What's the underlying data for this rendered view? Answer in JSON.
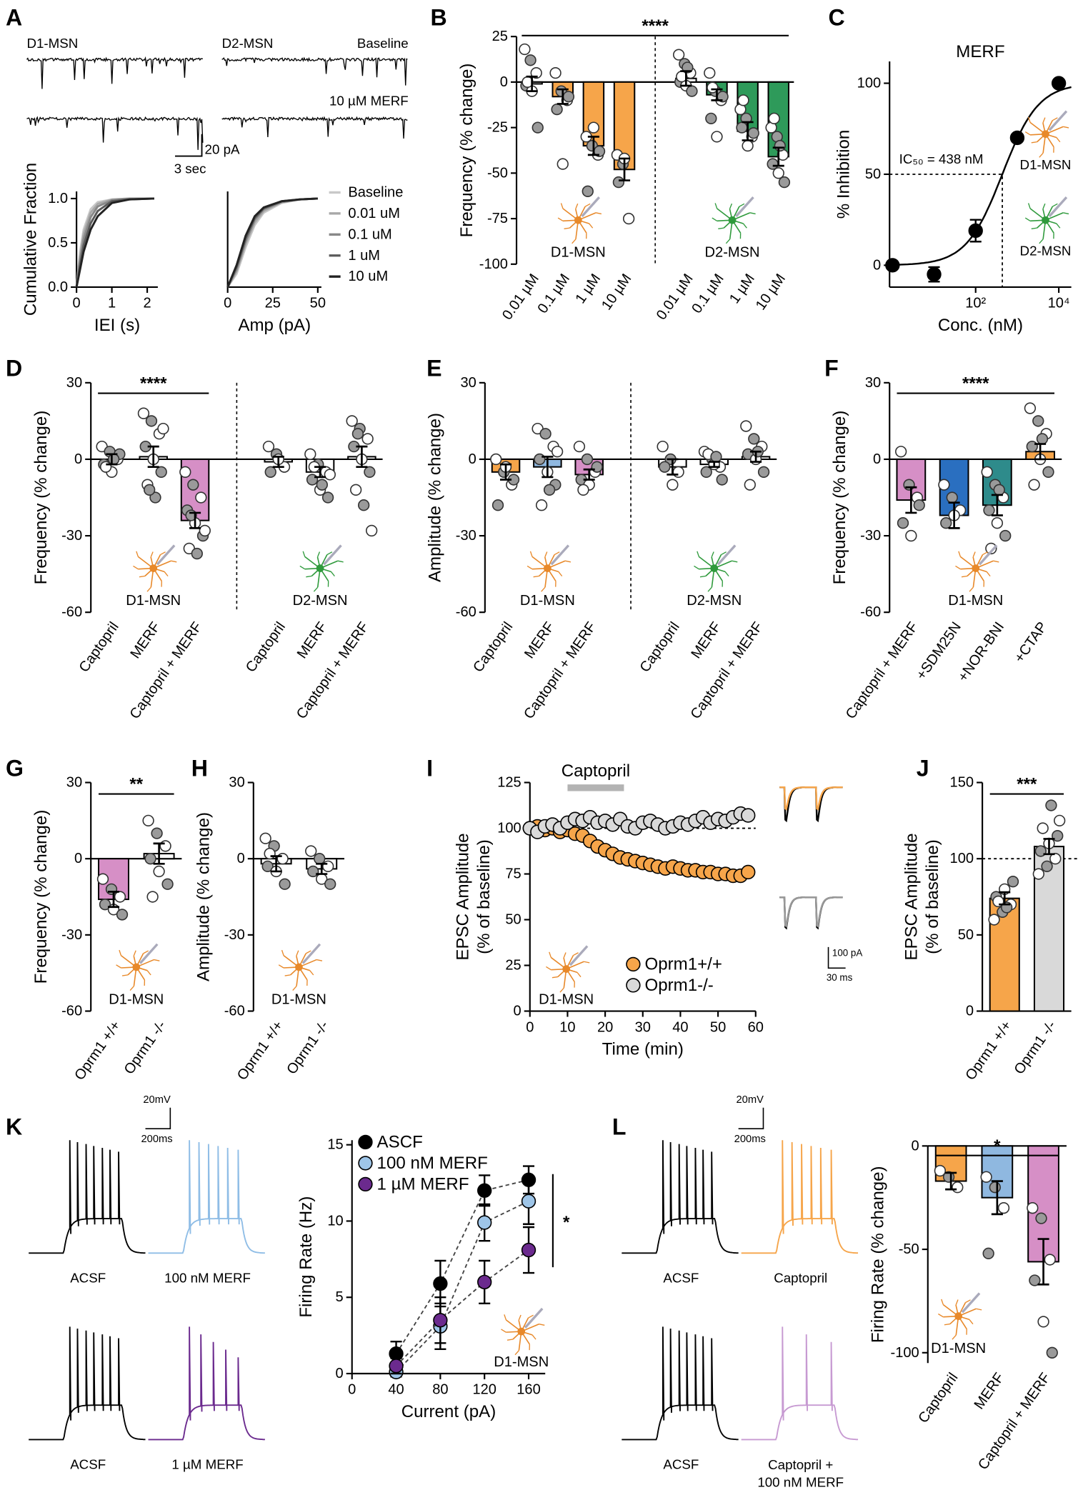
{
  "chart_data": [
    {
      "type": "traces",
      "panel": "A",
      "labels": [
        "D1-MSN",
        "D2-MSN",
        "Baseline",
        "10 µM MERF"
      ],
      "scale": [
        "20 pA",
        "3 sec"
      ]
    },
    {
      "type": "line",
      "ylabel": "Cumulative Fraction",
      "xlabel": "IEI (s)",
      "x": [
        0,
        0.1,
        0.2,
        0.4,
        0.6,
        1,
        1.5,
        2.2
      ],
      "series": [
        {
          "name": "Baseline",
          "color": "#c8c8c8",
          "values": [
            0,
            0.4,
            0.65,
            0.88,
            0.96,
            0.99,
            1,
            1
          ]
        },
        {
          "name": "0.01 uM",
          "color": "#a8a8a8",
          "values": [
            0,
            0.35,
            0.6,
            0.84,
            0.94,
            0.99,
            1,
            1
          ]
        },
        {
          "name": "0.1 uM",
          "color": "#888888",
          "values": [
            0,
            0.3,
            0.54,
            0.79,
            0.91,
            0.98,
            1,
            1
          ]
        },
        {
          "name": "1 uM",
          "color": "#5a5a5a",
          "values": [
            0,
            0.25,
            0.47,
            0.72,
            0.86,
            0.97,
            0.99,
            1
          ]
        },
        {
          "name": "10 uM",
          "color": "#222222",
          "values": [
            0,
            0.2,
            0.4,
            0.65,
            0.8,
            0.95,
            0.99,
            1
          ]
        }
      ],
      "xlim": [
        0,
        2.3
      ],
      "ylim": [
        0,
        1.08
      ],
      "xticks": [
        0,
        1,
        2
      ],
      "yticks": [
        {
          "value": 0,
          "label": "0.0"
        },
        {
          "value": 0.5,
          "label": "0.5"
        },
        {
          "value": 1,
          "label": "1.0"
        }
      ],
      "linestyle": "solid",
      "markers": false,
      "legend": "right"
    },
    {
      "type": "line",
      "xlabel": "Amp (pA)",
      "x": [
        0,
        5,
        10,
        15,
        20,
        30,
        40,
        50
      ],
      "series": [
        {
          "color": "#c8c8c8",
          "values": [
            0,
            0.15,
            0.45,
            0.7,
            0.84,
            0.95,
            0.99,
            1
          ]
        },
        {
          "color": "#a8a8a8",
          "values": [
            0,
            0.18,
            0.49,
            0.73,
            0.86,
            0.96,
            0.99,
            1
          ]
        },
        {
          "color": "#888888",
          "values": [
            0,
            0.2,
            0.52,
            0.76,
            0.88,
            0.96,
            0.99,
            1
          ]
        },
        {
          "color": "#5a5a5a",
          "values": [
            0,
            0.23,
            0.55,
            0.78,
            0.89,
            0.97,
            0.99,
            1
          ]
        },
        {
          "color": "#222222",
          "values": [
            0,
            0.25,
            0.58,
            0.8,
            0.9,
            0.97,
            0.99,
            1
          ]
        }
      ],
      "xlim": [
        0,
        52
      ],
      "ylim": [
        0,
        1.08
      ],
      "xticks": [
        0,
        25,
        50
      ],
      "linestyle": "solid",
      "markers": false
    },
    {
      "type": "bar",
      "panel": "B",
      "ylabel": "Frequency (% change)",
      "categories": [
        "0.01 µM",
        "0.1 µM",
        "1 µM",
        "10 µM",
        "0.01 µM",
        "0.1 µM",
        "1 µM",
        "10 µM"
      ],
      "values": [
        -1,
        -8,
        -35,
        -48,
        2,
        -7,
        -27,
        -41
      ],
      "errors": [
        4,
        4,
        5,
        6,
        4,
        3,
        5,
        5
      ],
      "colors": [
        "#ffffff",
        "#f6a54a",
        "#f6a54a",
        "#f6a54a",
        "#ffffff",
        "#2e9a5a",
        "#2e9a5a",
        "#2e9a5a"
      ],
      "points": [
        [
          18,
          12,
          5,
          -2,
          -5,
          -25,
          0
        ],
        [
          5,
          -5,
          -10,
          -15,
          -45,
          -8
        ],
        [
          -30,
          -35,
          -40,
          -60,
          -25,
          -38
        ],
        [
          -40,
          -45,
          -75,
          -55,
          -42
        ],
        [
          15,
          10,
          5,
          0,
          -2,
          -5,
          3,
          8
        ],
        [
          5,
          -5,
          -10,
          -20,
          -30,
          -8,
          -3
        ],
        [
          -15,
          -20,
          -30,
          -25,
          -35,
          -28,
          -10
        ],
        [
          -25,
          -30,
          -40,
          -45,
          -50,
          -55,
          -20,
          -35
        ]
      ],
      "groups": [
        "D1-MSN",
        "D2-MSN"
      ],
      "significance": "****",
      "ylim": [
        -100,
        25
      ],
      "yticks": [
        25,
        0,
        -25,
        -50,
        -75,
        -100
      ]
    },
    {
      "type": "line",
      "panel": "C",
      "title": "MERF",
      "xlabel": "Conc. (nM)",
      "ylabel": "% Inhibition",
      "xscale": "log",
      "x": [
        1,
        10,
        100,
        1000,
        10000
      ],
      "series": [
        {
          "color": "#000000",
          "values": [
            0,
            -5,
            19,
            70,
            100
          ],
          "errors": [
            null,
            4,
            6,
            null,
            null
          ]
        }
      ],
      "xlim": [
        0.85,
        20000
      ],
      "ylim": [
        -12,
        112
      ],
      "xticks": [
        {
          "value": 100,
          "label": "10²"
        },
        {
          "value": 10000,
          "label": "10⁴"
        }
      ],
      "yticks": [
        0,
        50,
        100
      ],
      "ic50": 438,
      "note": "IC₅₀ = 438 nM",
      "cells": [
        "D1-MSN",
        "D2-MSN"
      ],
      "linestyle": "none",
      "markers": true
    },
    {
      "type": "bar",
      "panel": "D",
      "ylabel": "Frequency (% change)",
      "categories": [
        "Captopril",
        "MERF",
        "Captopril + MERF",
        "Captopril",
        "MERF",
        "Captopril + MERF"
      ],
      "values": [
        0,
        1,
        -24,
        -1,
        -5,
        1
      ],
      "errors": [
        2,
        4,
        3,
        2,
        2,
        4
      ],
      "colors": [
        "#ffffff",
        "#ffffff",
        "#d68fc6",
        "#ffffff",
        "#ffffff",
        "#ffffff"
      ],
      "points": [
        [
          5,
          3,
          0,
          -2,
          -5,
          2,
          -3,
          0
        ],
        [
          18,
          15,
          10,
          5,
          0,
          -5,
          -10,
          -15,
          12,
          -12
        ],
        [
          -5,
          -10,
          -15,
          -20,
          -25,
          -30,
          -35,
          -37,
          -28,
          -22
        ],
        [
          5,
          2,
          -3,
          -5,
          0
        ],
        [
          2,
          -2,
          -5,
          -8,
          -12,
          -15,
          -3,
          -10,
          -6
        ],
        [
          15,
          12,
          8,
          5,
          0,
          -5,
          -12,
          -18,
          -28,
          10
        ]
      ],
      "groups": [
        "D1-MSN",
        "D2-MSN"
      ],
      "significance": "****",
      "ylim": [
        -60,
        30
      ],
      "yticks": [
        30,
        0,
        -30,
        -60
      ]
    },
    {
      "type": "bar",
      "panel": "E",
      "ylabel": "Amplitude (% change)",
      "categories": [
        "Captopril",
        "MERF",
        "Captopril + MERF",
        "Captopril",
        "MERF",
        "Captopril + MERF"
      ],
      "values": [
        -5,
        -3,
        -6,
        -3,
        -2,
        1
      ],
      "errors": [
        3,
        4,
        2,
        3,
        1,
        2
      ],
      "colors": [
        "#f6a54a",
        "#8fb8e0",
        "#d68fc6",
        "#ffffff",
        "#ffffff",
        "#ffffff"
      ],
      "points": [
        [
          0,
          -5,
          -10,
          -18,
          -3,
          -8
        ],
        [
          12,
          10,
          5,
          0,
          -5,
          -10,
          -18,
          -12,
          3
        ],
        [
          5,
          0,
          -5,
          -8,
          -10,
          -3,
          -12
        ],
        [
          5,
          0,
          -5,
          -3,
          -10
        ],
        [
          3,
          0,
          -3,
          -5,
          -2,
          -8,
          2,
          1
        ],
        [
          13,
          8,
          5,
          2,
          0,
          -5,
          -10,
          3
        ]
      ],
      "groups": [
        "D1-MSN",
        "D2-MSN"
      ],
      "ylim": [
        -60,
        30
      ],
      "yticks": [
        30,
        0,
        -30,
        -60
      ]
    },
    {
      "type": "bar",
      "panel": "F",
      "ylabel": "Frequency (% change)",
      "categories": [
        "Captopril + MERF",
        "+SDM25N",
        "+NOR-BNI",
        "+CTAP"
      ],
      "values": [
        -16,
        -22,
        -18,
        3
      ],
      "errors": [
        5,
        5,
        4,
        3
      ],
      "colors": [
        "#d68fc6",
        "#2a6fc0",
        "#2e8b8b",
        "#f6a54a"
      ],
      "points": [
        [
          3,
          -10,
          -15,
          -25,
          -30,
          -18
        ],
        [
          -10,
          -15,
          -20,
          -25,
          -22
        ],
        [
          -5,
          -10,
          -15,
          -20,
          -25,
          -30,
          -35,
          -12
        ],
        [
          20,
          15,
          10,
          5,
          0,
          -5,
          -10,
          8
        ]
      ],
      "cell_label": "D1-MSN",
      "significance": "****",
      "ylim": [
        -60,
        30
      ],
      "yticks": [
        30,
        0,
        -30,
        -60
      ]
    },
    {
      "type": "bar",
      "panel": "G",
      "ylabel": "Frequency (% change)",
      "categories": [
        "Oprm1 +/+",
        "Oprm1 -/-"
      ],
      "values": [
        -16,
        2
      ],
      "errors": [
        3,
        4
      ],
      "colors": [
        "#d68fc6",
        "#ffffff"
      ],
      "points": [
        [
          -8,
          -12,
          -15,
          -18,
          -20,
          -22
        ],
        [
          15,
          10,
          5,
          0,
          -5,
          -10,
          -15
        ]
      ],
      "cell_label": "D1-MSN",
      "significance": "**",
      "ylim": [
        -60,
        30
      ],
      "yticks": [
        30,
        0,
        -30,
        -60
      ]
    },
    {
      "type": "bar",
      "panel": "H",
      "ylabel": "Amplitude (% change)",
      "categories": [
        "Oprm1 +/+",
        "Oprm1 -/-"
      ],
      "values": [
        -2,
        -4
      ],
      "errors": [
        3,
        2
      ],
      "colors": [
        "#ffffff",
        "#ffffff"
      ],
      "points": [
        [
          8,
          5,
          0,
          -3,
          -5,
          -10,
          2
        ],
        [
          3,
          0,
          -3,
          -5,
          -8,
          -10
        ]
      ],
      "cell_label": "D1-MSN",
      "ylim": [
        -60,
        30
      ],
      "yticks": [
        30,
        0,
        -30,
        -60
      ]
    },
    {
      "type": "line",
      "panel": "I",
      "ylabel": [
        "EPSC Amplitude",
        "(% of baseline)"
      ],
      "xlabel": "Time (min)",
      "x": [
        0,
        2,
        4,
        6,
        8,
        10,
        12,
        14,
        16,
        18,
        20,
        22,
        24,
        26,
        28,
        30,
        32,
        34,
        36,
        38,
        40,
        42,
        44,
        46,
        48,
        50,
        52,
        54,
        56,
        58
      ],
      "series": [
        {
          "name": "Oprm1+/+",
          "color": "#f6a54a",
          "values": [
            100,
            101,
            99,
            100,
            98,
            99,
            97,
            96,
            93,
            90,
            88,
            86,
            84,
            83,
            82,
            81,
            80,
            79,
            78,
            79,
            78,
            77,
            77,
            76,
            76,
            75,
            75,
            74,
            74,
            76
          ]
        },
        {
          "name": "Oprm1-/-",
          "color": "#d9d9d9",
          "values": [
            100,
            98,
            101,
            102,
            100,
            103,
            105,
            104,
            106,
            103,
            104,
            102,
            105,
            101,
            100,
            103,
            104,
            102,
            100,
            101,
            103,
            102,
            104,
            106,
            103,
            105,
            104,
            106,
            108,
            107
          ]
        }
      ],
      "xlim": [
        0,
        60
      ],
      "ylim": [
        0,
        125
      ],
      "xticks": [
        0,
        10,
        20,
        30,
        40,
        50,
        60
      ],
      "yticks": [
        0,
        25,
        50,
        75,
        100,
        125
      ],
      "refline": 100,
      "span": [
        10,
        25
      ],
      "span_label": "Captopril",
      "legend": "lower right",
      "linestyle": "none",
      "markers": true,
      "cell_label": "D1-MSN",
      "inset_scale": [
        "100 pA",
        "30 ms"
      ]
    },
    {
      "type": "bar",
      "panel": "J",
      "ylabel": [
        "EPSC Amplitude",
        "(% of baseline)"
      ],
      "categories": [
        "Oprm1 +/+",
        "Oprm1 -/-"
      ],
      "values": [
        74,
        108
      ],
      "errors": [
        4,
        5
      ],
      "colors": [
        "#f6a54a",
        "#d9d9d9"
      ],
      "points": [
        [
          60,
          65,
          70,
          75,
          80,
          85,
          72,
          68
        ],
        [
          90,
          95,
          100,
          105,
          110,
          115,
          120,
          135,
          125
        ]
      ],
      "refline": 100,
      "significance": "***",
      "ylim": [
        0,
        150
      ],
      "yticks": [
        0,
        50,
        100,
        150
      ]
    },
    {
      "type": "traces",
      "panel": "K",
      "labels": [
        "ACSF",
        "100 nM MERF",
        "ACSF",
        "1 µM MERF"
      ],
      "colors": [
        "#000000",
        "#8fbde6",
        "#000000",
        "#6b2a8e"
      ],
      "scale": [
        "20mV",
        "200ms"
      ]
    },
    {
      "type": "line",
      "xlabel": "Current (pA)",
      "ylabel": "Firing Rate (Hz)",
      "x": [
        40,
        80,
        120,
        160
      ],
      "series": [
        {
          "name": "ASCF",
          "color": "#000000",
          "values": [
            1.3,
            5.9,
            12,
            12.7
          ],
          "errors": [
            0.8,
            1.5,
            1,
            0.9
          ]
        },
        {
          "name": "100 nM MERF",
          "color": "#9ec5e8",
          "values": [
            0.1,
            3.1,
            9.9,
            11.3
          ],
          "errors": [
            0.3,
            1.5,
            1.2,
            1.5
          ]
        },
        {
          "name": "1 µM MERF",
          "color": "#6b2a8e",
          "values": [
            0.5,
            3.5,
            6,
            8.1
          ],
          "errors": [
            0.5,
            1.5,
            1.4,
            1.5
          ]
        }
      ],
      "xlim": [
        0,
        175
      ],
      "ylim": [
        0,
        15.3
      ],
      "xticks": [
        0,
        40,
        80,
        120,
        160
      ],
      "yticks": [
        0,
        5,
        10,
        15
      ],
      "legend": "upper left",
      "linestyle": "dashed",
      "markers": true,
      "significance": "*",
      "cell_label": "D1-MSN"
    },
    {
      "type": "traces",
      "panel": "L",
      "labels": [
        "ACSF",
        "Captopril",
        "ACSF",
        "Captopril + 100 nM MERF"
      ],
      "colors": [
        "#000000",
        "#f6a54a",
        "#000000",
        "#c79ad2"
      ],
      "scale": [
        "20mV",
        "200ms"
      ]
    },
    {
      "type": "bar",
      "ylabel": "Firing Rate (% change)",
      "categories": [
        "Captopril",
        "MERF",
        "Captopril + MERF"
      ],
      "values": [
        -17,
        -25,
        -56
      ],
      "errors": [
        4,
        8,
        11
      ],
      "colors": [
        "#f6a54a",
        "#8fb8e0",
        "#d68fc6"
      ],
      "points": [
        [
          -12,
          -15,
          -20
        ],
        [
          -15,
          -20,
          -30,
          -52
        ],
        [
          -30,
          -35,
          -55,
          -65,
          -85,
          -100
        ]
      ],
      "cell_label": "D1-MSN",
      "significance": "*",
      "ylim": [
        -105,
        0
      ],
      "yticks": [
        0,
        -50,
        -100
      ]
    }
  ]
}
